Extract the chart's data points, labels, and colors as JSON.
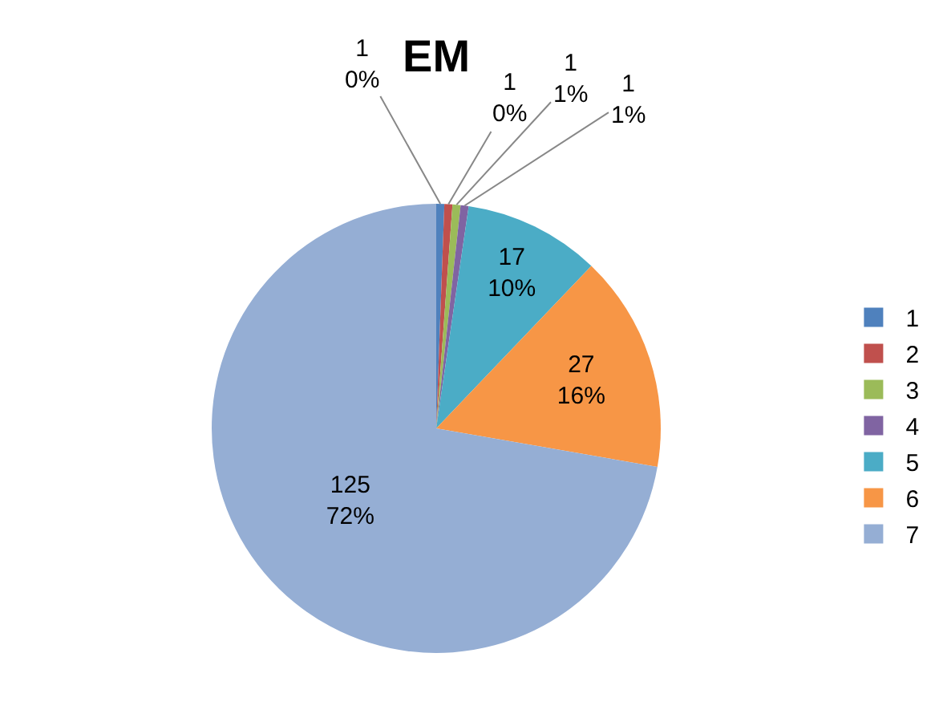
{
  "chart_data": {
    "type": "pie",
    "title": "EM",
    "categories": [
      "1",
      "2",
      "3",
      "4",
      "5",
      "6",
      "7"
    ],
    "values": [
      1,
      1,
      1,
      1,
      17,
      27,
      125
    ],
    "colors": [
      "#4f81bd",
      "#c0504d",
      "#9bbb59",
      "#8064a2",
      "#4bacc6",
      "#f79646",
      "#95aed4"
    ],
    "value_labels": [
      "1\n0%",
      "1\n0%",
      "1\n1%",
      "1\n1%",
      "17\n10%",
      "27\n16%",
      "125\n72%"
    ],
    "legend": "right"
  }
}
